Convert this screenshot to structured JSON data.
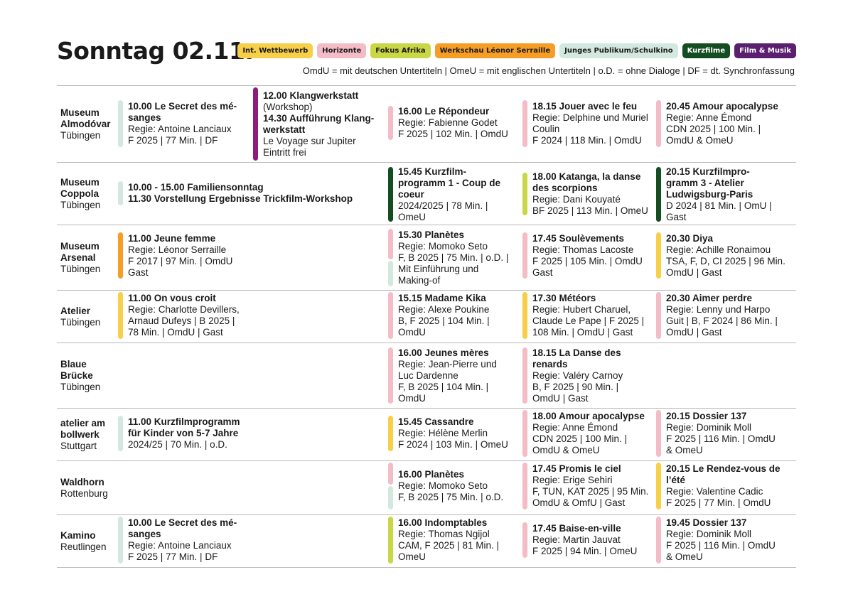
{
  "page_title": "Sonntag 02.11.",
  "colors": {
    "int_wettbewerb": "#f7cf48",
    "horizonte": "#f4bcc6",
    "fokus_afrika": "#c9d746",
    "werkschau": "#f59d25",
    "junges_publikum": "#d3e9e0",
    "kurzfilme": "#144d21",
    "film_musik": "#5a1f6e",
    "klangwerkstatt": "#8e1c7c",
    "rule": "#b9b9b9"
  },
  "legend": [
    {
      "label": "Int. Wettbewerb",
      "color": "#f7cf48",
      "text": "#1a1a1a"
    },
    {
      "label": "Horizonte",
      "color": "#f4bcc6",
      "text": "#1a1a1a"
    },
    {
      "label": "Fokus Afrika",
      "color": "#c9d746",
      "text": "#1a1a1a"
    },
    {
      "label": "Werkschau Léonor Serraille",
      "color": "#f59d25",
      "text": "#1a1a1a"
    },
    {
      "label": "Junges Publikum/Schulkino",
      "color": "#d3e9e0",
      "text": "#1a1a1a"
    },
    {
      "label": "Kurzfilme",
      "color": "#144d21",
      "text": "#ffffff"
    },
    {
      "label": "Film & Musik",
      "color": "#5a1f6e",
      "text": "#ffffff"
    }
  ],
  "abbreviations": "OmdU = mit deutschen Untertiteln | OmeU = mit englischen Untertiteln | o.D. = ohne Dialoge | DF = dt. Synchronfassung",
  "rows": [
    {
      "venue": "Museum Almodóvar",
      "city": "Tübingen",
      "entries": [
        {
          "bars": [
            {
              "color": "#d3e9e0",
              "from": 0,
              "to": 1
            }
          ],
          "lines": [
            {
              "t": "10.00 Le Secret des mé-",
              "b": true
            },
            {
              "t": "sanges",
              "b": true
            },
            {
              "t": "Regie: Antoine Lanciaux"
            },
            {
              "t": "F 2025 | 77 Min. | DF"
            }
          ]
        },
        {
          "bars": [
            {
              "color": "#8e1c7c",
              "from": 0,
              "to": 1
            }
          ],
          "lines": [
            {
              "t": "12.00 Klangwerkstatt",
              "b": true
            },
            {
              "t": "(Workshop)"
            },
            {
              "t": "14.30 Aufführung Klang-",
              "b": true
            },
            {
              "t": "werkstatt",
              "b": true
            },
            {
              "t": "Le Voyage sur Jupiter"
            },
            {
              "t": "Eintritt frei"
            }
          ]
        },
        {
          "bars": [
            {
              "color": "#f4bcc6",
              "from": 0,
              "to": 1
            }
          ],
          "lines": [
            {
              "t": "16.00 Le Répondeur",
              "b": true
            },
            {
              "t": "Regie: Fabienne Godet"
            },
            {
              "t": "F 2025 | 102 Min. | OmdU"
            }
          ]
        },
        {
          "bars": [
            {
              "color": "#f4bcc6",
              "from": 0,
              "to": 1
            }
          ],
          "lines": [
            {
              "t": "18.15 Jouer avec le feu",
              "b": true
            },
            {
              "t": "Regie: Delphine und Muriel"
            },
            {
              "t": "Coulin"
            },
            {
              "t": "F 2024 | 118 Min. | OmdU"
            }
          ]
        },
        {
          "bars": [
            {
              "color": "#f4bcc6",
              "from": 0,
              "to": 1
            }
          ],
          "lines": [
            {
              "t": "20.45 Amour apocalypse",
              "b": true
            },
            {
              "t": "Regie: Anne Émond"
            },
            {
              "t": "CDN 2025 | 100 Min. |"
            },
            {
              "t": "OmdU & OmeU"
            }
          ]
        }
      ]
    },
    {
      "venue": "Museum Coppola",
      "city": "Tübingen",
      "entries": [
        {
          "bars": [
            {
              "color": "#d3e9e0",
              "from": 0,
              "to": 1
            }
          ],
          "lines": [
            {
              "t": "10.00 - 15.00 Familiensonntag",
              "b": true
            },
            {
              "t": "11.30 Vorstellung Ergebnisse Trickfilm-Workshop",
              "b": true
            }
          ]
        },
        {
          "bars": [
            {
              "color": "#144d21",
              "from": 0,
              "to": 1
            }
          ],
          "lines": [
            {
              "t": "15.45 Kurzfilm-",
              "b": true
            },
            {
              "t": "programm 1 - Coup de",
              "b": true
            },
            {
              "t": "coeur",
              "b": true
            },
            {
              "t": "2024/2025 | 78 Min. |"
            },
            {
              "t": "OmeU"
            }
          ]
        },
        {
          "bars": [
            {
              "color": "#c9d746",
              "from": 0,
              "to": 1
            }
          ],
          "lines": [
            {
              "t": "18.00 Katanga, la danse",
              "b": true
            },
            {
              "t": "des scorpions",
              "b": true
            },
            {
              "t": "Regie: Dani Kouyaté"
            },
            {
              "t": "BF 2025 | 113 Min. | OmeU"
            }
          ]
        },
        {
          "bars": [
            {
              "color": "#144d21",
              "from": 0,
              "to": 1
            }
          ],
          "lines": [
            {
              "t": "20.15 Kurzfilmpro-",
              "b": true
            },
            {
              "t": "gramm 3 - Atelier",
              "b": true
            },
            {
              "t": "Ludwigsburg-Paris",
              "b": true
            },
            {
              "t": "D 2024 | 81 Min. | OmU |"
            },
            {
              "t": "Gast"
            }
          ]
        }
      ]
    },
    {
      "venue": "Museum Arsenal",
      "city": "Tübingen",
      "entries": [
        {
          "bars": [
            {
              "color": "#f59d25",
              "from": 0,
              "to": 1
            }
          ],
          "lines": [
            {
              "t": "11.00 Jeune femme",
              "b": true
            },
            {
              "t": "Regie: Léonor Serraille"
            },
            {
              "t": "F 2017 | 97 Min. | OmdU"
            },
            {
              "t": "Gast"
            }
          ]
        },
        {
          "bars": [
            {
              "color": "#f4bcc6",
              "from": 0,
              "to": 0.55
            },
            {
              "color": "#d3e9e0",
              "from": 0.55,
              "to": 1
            }
          ],
          "lines": [
            {
              "t": "15.30 Planètes",
              "b": true
            },
            {
              "t": "Regie: Momoko Seto"
            },
            {
              "t": "F, B 2025 | 75 Min. | o.D. |"
            },
            {
              "t": "Mit Einführung und"
            },
            {
              "t": "Making-of"
            }
          ]
        },
        {
          "bars": [
            {
              "color": "#f4bcc6",
              "from": 0,
              "to": 1
            }
          ],
          "lines": [
            {
              "t": "17.45 Soulèvements",
              "b": true
            },
            {
              "t": "Regie: Thomas Lacoste"
            },
            {
              "t": "F 2025 | 105 Min. | OmdU"
            },
            {
              "t": "Gast"
            }
          ]
        },
        {
          "bars": [
            {
              "color": "#f7cf48",
              "from": 0,
              "to": 1
            }
          ],
          "lines": [
            {
              "t": "20.30 Diya",
              "b": true
            },
            {
              "t": "Regie: Achille Ronaimou"
            },
            {
              "t": "TSA, F, D, CI 2025 | 96 Min."
            },
            {
              "t": "OmdU | Gast"
            }
          ]
        }
      ]
    },
    {
      "venue": "Atelier",
      "city": "Tübingen",
      "entries": [
        {
          "bars": [
            {
              "color": "#f7cf48",
              "from": 0,
              "to": 1
            }
          ],
          "lines": [
            {
              "t": "11.00 On vous croit",
              "b": true
            },
            {
              "t": "Regie: Charlotte Devillers,"
            },
            {
              "t": "Arnaud Dufeys | B 2025 |"
            },
            {
              "t": "78 Min. | OmdU | Gast"
            }
          ]
        },
        {
          "bars": [
            {
              "color": "#f4bcc6",
              "from": 0,
              "to": 1
            }
          ],
          "lines": [
            {
              "t": "15.15 Madame Kika",
              "b": true
            },
            {
              "t": "Regie: Alexe Poukine"
            },
            {
              "t": "B, F 2025 | 104 Min. |"
            },
            {
              "t": "OmdU"
            }
          ]
        },
        {
          "bars": [
            {
              "color": "#f7cf48",
              "from": 0,
              "to": 1
            }
          ],
          "lines": [
            {
              "t": "17.30 Météors",
              "b": true
            },
            {
              "t": "Regie: Hubert Charuel,"
            },
            {
              "t": "Claude Le Pape | F 2025 |"
            },
            {
              "t": "108 Min. | OmdU | Gast"
            }
          ]
        },
        {
          "bars": [
            {
              "color": "#f4bcc6",
              "from": 0,
              "to": 1
            }
          ],
          "lines": [
            {
              "t": "20.30 Aimer perdre",
              "b": true
            },
            {
              "t": "Regie: Lenny und Harpo"
            },
            {
              "t": "Guit | B, F 2024 | 86 Min. |"
            },
            {
              "t": "OmdU | Gast"
            }
          ]
        }
      ]
    },
    {
      "venue": "Blaue Brücke",
      "city": "Tübingen",
      "entries": [
        {
          "bars": [
            {
              "color": "#f4bcc6",
              "from": 0,
              "to": 1
            }
          ],
          "lines": [
            {
              "t": "16.00 Jeunes mères",
              "b": true
            },
            {
              "t": "Regie: Jean-Pierre und"
            },
            {
              "t": "Luc Dardenne"
            },
            {
              "t": "F, B 2025 | 104 Min. |"
            },
            {
              "t": "OmdU"
            }
          ]
        },
        {
          "bars": [
            {
              "color": "#f4bcc6",
              "from": 0,
              "to": 1
            }
          ],
          "lines": [
            {
              "t": "18.15 La Danse des",
              "b": true
            },
            {
              "t": "renards",
              "b": true
            },
            {
              "t": "Regie: Valéry Carnoy"
            },
            {
              "t": "B, F 2025 | 90 Min. |"
            },
            {
              "t": "OmdU | Gast"
            }
          ]
        }
      ]
    },
    {
      "venue": "atelier am bollwerk",
      "city": "Stuttgart",
      "entries": [
        {
          "bars": [
            {
              "color": "#d3e9e0",
              "from": 0,
              "to": 1
            }
          ],
          "lines": [
            {
              "t": "11.00 Kurzfilmprogramm",
              "b": true
            },
            {
              "t": "für Kinder von 5-7 Jahre",
              "b": true
            },
            {
              "t": "2024/25 | 70 Min. | o.D."
            }
          ]
        },
        {
          "bars": [
            {
              "color": "#f7cf48",
              "from": 0,
              "to": 1
            }
          ],
          "lines": [
            {
              "t": "15.45 Cassandre",
              "b": true
            },
            {
              "t": "Regie: Hélène Merlin"
            },
            {
              "t": "F 2024 | 103 Min. | OmeU"
            }
          ]
        },
        {
          "bars": [
            {
              "color": "#f4bcc6",
              "from": 0,
              "to": 1
            }
          ],
          "lines": [
            {
              "t": "18.00 Amour apocalypse",
              "b": true
            },
            {
              "t": "Regie: Anne Émond"
            },
            {
              "t": "CDN 2025 | 100 Min. |"
            },
            {
              "t": "OmdU & OmeU"
            }
          ]
        },
        {
          "bars": [
            {
              "color": "#f4bcc6",
              "from": 0,
              "to": 1
            }
          ],
          "lines": [
            {
              "t": "20.15 Dossier 137",
              "b": true
            },
            {
              "t": "Regie: Dominik Moll"
            },
            {
              "t": "F 2025 | 116 Min. | OmdU"
            },
            {
              "t": "& OmeU"
            }
          ]
        }
      ]
    },
    {
      "venue": "Waldhorn",
      "city": "Rottenburg",
      "entries": [
        {
          "bars": [
            {
              "color": "#f4bcc6",
              "from": 0,
              "to": 0.5
            },
            {
              "color": "#d3e9e0",
              "from": 0.5,
              "to": 1
            }
          ],
          "lines": [
            {
              "t": "16.00 Planètes",
              "b": true
            },
            {
              "t": "Regie: Momoko Seto"
            },
            {
              "t": "F, B 2025 | 75 Min. | o.D."
            }
          ]
        },
        {
          "bars": [
            {
              "color": "#f4bcc6",
              "from": 0,
              "to": 1
            }
          ],
          "lines": [
            {
              "t": "17.45 Promis le ciel",
              "b": true
            },
            {
              "t": "Regie: Erige Sehiri"
            },
            {
              "t": "F, TUN, KAT 2025 | 95 Min."
            },
            {
              "t": "OmdU & OmfU | Gast"
            }
          ]
        },
        {
          "bars": [
            {
              "color": "#f7cf48",
              "from": 0,
              "to": 1
            }
          ],
          "lines": [
            {
              "t": "20.15 Le Rendez-vous de",
              "b": true
            },
            {
              "t": "l’été",
              "b": true
            },
            {
              "t": "Regie: Valentine Cadic"
            },
            {
              "t": "F 2025 | 77 Min. | OmdU"
            }
          ]
        }
      ]
    },
    {
      "venue": "Kamino",
      "city": "Reutlingen",
      "entries": [
        {
          "bars": [
            {
              "color": "#d3e9e0",
              "from": 0,
              "to": 1
            }
          ],
          "lines": [
            {
              "t": "10.00 Le Secret des mé-",
              "b": true
            },
            {
              "t": "sanges",
              "b": true
            },
            {
              "t": "Regie: Antoine Lanciaux"
            },
            {
              "t": "F 2025 | 77 Min. | DF"
            }
          ]
        },
        {
          "bars": [
            {
              "color": "#c9d746",
              "from": 0,
              "to": 1
            }
          ],
          "lines": [
            {
              "t": "16.00 Indomptables",
              "b": true
            },
            {
              "t": "Regie: Thomas Ngijol"
            },
            {
              "t": "CAM, F 2025 | 81 Min. |"
            },
            {
              "t": "OmeU"
            }
          ]
        },
        {
          "bars": [
            {
              "color": "#f4bcc6",
              "from": 0,
              "to": 1
            }
          ],
          "lines": [
            {
              "t": "17.45 Baise-en-ville",
              "b": true
            },
            {
              "t": "Regie: Martin Jauvat"
            },
            {
              "t": "F 2025 | 94 Min. | OmeU"
            }
          ]
        },
        {
          "bars": [
            {
              "color": "#f4bcc6",
              "from": 0,
              "to": 1
            }
          ],
          "lines": [
            {
              "t": "19.45 Dossier 137",
              "b": true
            },
            {
              "t": "Regie: Dominik Moll"
            },
            {
              "t": "F 2025 | 116 Min. | OmdU"
            },
            {
              "t": "& OmeU"
            }
          ]
        }
      ]
    }
  ]
}
